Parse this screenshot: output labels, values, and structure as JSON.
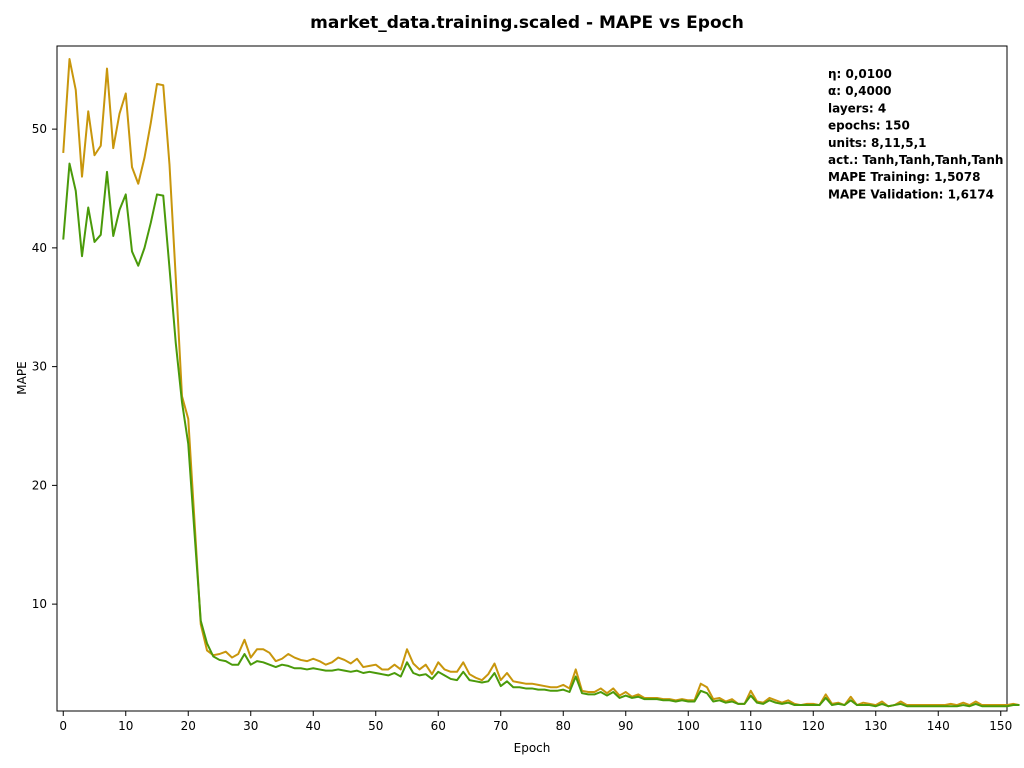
{
  "chart_data": {
    "type": "line",
    "title": "market_data.training.scaled - MAPE vs Epoch",
    "xlabel": "Epoch",
    "ylabel": "MAPE",
    "xlim": [
      -1,
      151
    ],
    "ylim": [
      1,
      57
    ],
    "xticks": [
      0,
      10,
      20,
      30,
      40,
      50,
      60,
      70,
      80,
      90,
      100,
      110,
      120,
      130,
      140,
      150
    ],
    "yticks": [
      10,
      20,
      30,
      40,
      50
    ],
    "grid": false,
    "series": [
      {
        "color": "#C8960C",
        "values": [
          48.0,
          55.9,
          53.3,
          46.0,
          51.5,
          47.8,
          48.6,
          55.1,
          48.4,
          51.3,
          53.0,
          46.8,
          45.4,
          47.6,
          50.5,
          53.8,
          53.7,
          47.0,
          37.5,
          27.5,
          25.6,
          17.0,
          8.3,
          6.1,
          5.7,
          5.8,
          6.0,
          5.5,
          5.8,
          7.0,
          5.5,
          6.2,
          6.2,
          5.9,
          5.2,
          5.4,
          5.8,
          5.5,
          5.3,
          5.2,
          5.4,
          5.2,
          4.9,
          5.1,
          5.5,
          5.3,
          5.0,
          5.4,
          4.7,
          4.8,
          4.9,
          4.5,
          4.5,
          4.9,
          4.5,
          6.2,
          5.0,
          4.5,
          4.9,
          4.1,
          5.1,
          4.5,
          4.3,
          4.3,
          5.1,
          4.1,
          3.8,
          3.6,
          4.1,
          5.0,
          3.6,
          4.2,
          3.5,
          3.4,
          3.3,
          3.3,
          3.2,
          3.1,
          3.0,
          3.0,
          3.2,
          2.9,
          4.5,
          2.7,
          2.6,
          2.6,
          2.9,
          2.5,
          2.9,
          2.3,
          2.6,
          2.2,
          2.4,
          2.1,
          2.1,
          2.1,
          2.0,
          2.0,
          1.9,
          2.0,
          1.9,
          1.9,
          3.3,
          3.0,
          2.0,
          2.1,
          1.8,
          2.0,
          1.6,
          1.6,
          2.7,
          1.8,
          1.7,
          2.1,
          1.9,
          1.7,
          1.9,
          1.6,
          1.5,
          1.6,
          1.6,
          1.5,
          2.4,
          1.6,
          1.7,
          1.5,
          2.2,
          1.5,
          1.7,
          1.6,
          1.5,
          1.8,
          1.4,
          1.5,
          1.8,
          1.5,
          1.5,
          1.5,
          1.5,
          1.5,
          1.5,
          1.5,
          1.6,
          1.5,
          1.7,
          1.5,
          1.8,
          1.5,
          1.5,
          1.5,
          1.5,
          1.5,
          1.6,
          1.5
        ]
      },
      {
        "color": "#4A9A0A",
        "values": [
          40.7,
          47.1,
          44.8,
          39.3,
          43.4,
          40.5,
          41.1,
          46.4,
          41.0,
          43.2,
          44.5,
          39.7,
          38.5,
          40.0,
          42.1,
          44.5,
          44.4,
          38.3,
          32.0,
          27.0,
          23.5,
          16.0,
          8.6,
          6.7,
          5.6,
          5.3,
          5.2,
          4.9,
          4.9,
          5.8,
          4.9,
          5.2,
          5.1,
          4.9,
          4.7,
          4.9,
          4.8,
          4.6,
          4.6,
          4.5,
          4.6,
          4.5,
          4.4,
          4.4,
          4.5,
          4.4,
          4.3,
          4.4,
          4.2,
          4.3,
          4.2,
          4.1,
          4.0,
          4.2,
          3.9,
          5.1,
          4.2,
          4.0,
          4.1,
          3.7,
          4.3,
          4.0,
          3.7,
          3.6,
          4.3,
          3.6,
          3.5,
          3.4,
          3.5,
          4.2,
          3.1,
          3.5,
          3.0,
          3.0,
          2.9,
          2.9,
          2.8,
          2.8,
          2.7,
          2.7,
          2.8,
          2.6,
          3.9,
          2.5,
          2.4,
          2.4,
          2.6,
          2.3,
          2.6,
          2.1,
          2.3,
          2.1,
          2.2,
          2.0,
          2.0,
          2.0,
          1.9,
          1.9,
          1.8,
          1.9,
          1.8,
          1.8,
          2.7,
          2.5,
          1.8,
          1.9,
          1.7,
          1.8,
          1.6,
          1.6,
          2.3,
          1.7,
          1.6,
          1.9,
          1.7,
          1.6,
          1.7,
          1.5,
          1.5,
          1.5,
          1.5,
          1.5,
          2.1,
          1.5,
          1.6,
          1.5,
          1.9,
          1.5,
          1.5,
          1.5,
          1.4,
          1.6,
          1.4,
          1.5,
          1.6,
          1.4,
          1.4,
          1.4,
          1.4,
          1.4,
          1.4,
          1.4,
          1.4,
          1.4,
          1.5,
          1.4,
          1.6,
          1.4,
          1.4,
          1.4,
          1.4,
          1.4,
          1.5,
          1.5
        ]
      }
    ],
    "annotations": [
      "η: 0,0100",
      "α: 0,4000",
      "layers: 4",
      "epochs: 150",
      "units: 8,11,5,1",
      "act.: Tanh,Tanh,Tanh,Tanh",
      "MAPE Training: 1,5078",
      "MAPE Validation: 1,6174"
    ]
  }
}
